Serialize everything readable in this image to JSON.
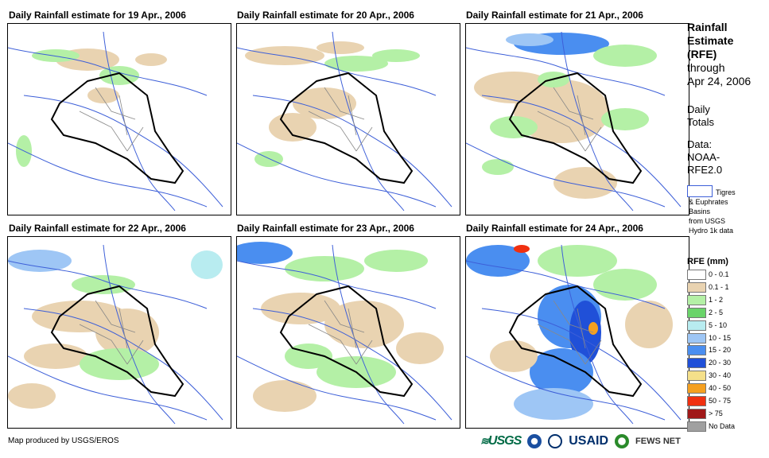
{
  "panels": [
    {
      "title": "Daily Rainfall estimate for 19 Apr., 2006"
    },
    {
      "title": "Daily Rainfall estimate for 20 Apr., 2006"
    },
    {
      "title": "Daily Rainfall estimate for 21 Apr., 2006"
    },
    {
      "title": "Daily Rainfall estimate for 22 Apr., 2006"
    },
    {
      "title": "Daily Rainfall estimate for 23 Apr., 2006"
    },
    {
      "title": "Daily Rainfall estimate for 24 Apr., 2006"
    }
  ],
  "legend": {
    "title_line1": "Rainfall",
    "title_line2": "Estimate",
    "title_line3": "(RFE)",
    "through": "through",
    "date": "Apr 24, 2006",
    "daily_1": "Daily",
    "daily_2": "Totals",
    "data_1": "Data:",
    "data_2": "NOAA-",
    "data_3": "RFE2.0",
    "basin_1": "Tigres",
    "basin_2": "& Euphrates",
    "basin_3": "Basins",
    "basin_4": "from USGS",
    "basin_5": "Hydro 1k data",
    "rfe_header": "RFE (mm)",
    "classes": [
      {
        "label": "0 - 0.1",
        "color": "#ffffff"
      },
      {
        "label": "0.1 - 1",
        "color": "#e9d3b1"
      },
      {
        "label": "1 - 2",
        "color": "#b4f0a6"
      },
      {
        "label": "2 - 5",
        "color": "#6ad46a"
      },
      {
        "label": "5 - 10",
        "color": "#b8ecf0"
      },
      {
        "label": "10 - 15",
        "color": "#9ec6f5"
      },
      {
        "label": "15 - 20",
        "color": "#4a8ef0"
      },
      {
        "label": "20 - 30",
        "color": "#2050d8"
      },
      {
        "label": "30 - 40",
        "color": "#f5e08a"
      },
      {
        "label": "40 - 50",
        "color": "#f5a020"
      },
      {
        "label": "50 - 75",
        "color": "#f03010"
      },
      {
        "label": "> 75",
        "color": "#a01818"
      },
      {
        "label": "No Data",
        "color": "#a0a0a0"
      }
    ]
  },
  "footer": {
    "credit": "Map produced by USGS/EROS",
    "logo_usgs": "USGS",
    "logo_usaid": "USAID",
    "logo_fews": "FEWS NET"
  },
  "colors": {
    "river": "#3d5fd8",
    "border": "#000000",
    "province": "#888888"
  }
}
